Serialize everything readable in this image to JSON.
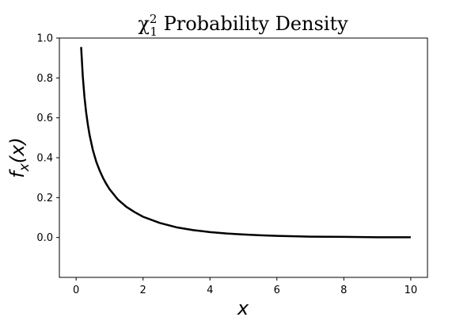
{
  "chart_data": {
    "type": "line",
    "title": {
      "base": "χ",
      "superscript": "2",
      "subscript": "1",
      "text": " Probability Density"
    },
    "xlabel": "x",
    "ylabel": {
      "base": "f",
      "subscript": "x",
      "rest": "(x)"
    },
    "xlim": [
      -0.5,
      10.5
    ],
    "ylim": [
      -0.2,
      1.0
    ],
    "xticks": [
      0,
      2,
      4,
      6,
      8,
      10
    ],
    "xtick_labels": [
      "0",
      "2",
      "4",
      "6",
      "8",
      "10"
    ],
    "yticks": [
      0.0,
      0.2,
      0.4,
      0.6,
      0.8,
      1.0
    ],
    "ytick_labels": [
      "0.0",
      "0.2",
      "0.4",
      "0.6",
      "0.8",
      "1.0"
    ],
    "grid": false,
    "legend": null,
    "series": [
      {
        "color": "#000000",
        "x": [
          0.15,
          0.2,
          0.25,
          0.3,
          0.35,
          0.4,
          0.5,
          0.6,
          0.7,
          0.8,
          0.9,
          1.0,
          1.25,
          1.5,
          1.75,
          2.0,
          2.5,
          3.0,
          3.5,
          4.0,
          4.5,
          5.0,
          5.5,
          6.0,
          7.0,
          8.0,
          9.0,
          10.0
        ],
        "y": [
          0.955,
          0.807,
          0.704,
          0.627,
          0.567,
          0.516,
          0.439,
          0.381,
          0.337,
          0.3,
          0.269,
          0.242,
          0.19,
          0.154,
          0.127,
          0.104,
          0.073,
          0.051,
          0.037,
          0.027,
          0.02,
          0.015,
          0.011,
          0.008,
          0.004,
          0.003,
          0.001,
          0.001
        ]
      }
    ]
  }
}
